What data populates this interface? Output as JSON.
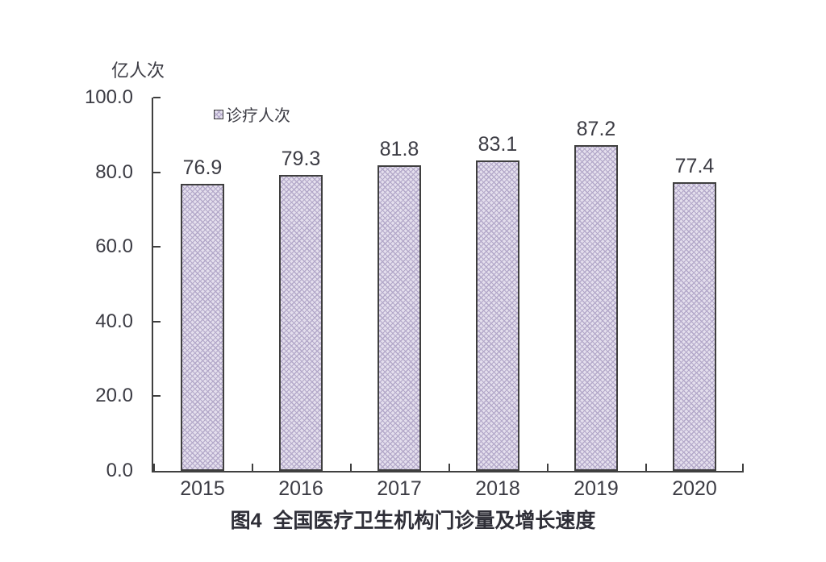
{
  "chart_data": {
    "type": "bar",
    "title": "图4  全国医疗卫生机构门诊量及增长速度",
    "ylabel": "亿人次",
    "xlabel": "",
    "categories": [
      "2015",
      "2016",
      "2017",
      "2018",
      "2019",
      "2020"
    ],
    "series": [
      {
        "name": "诊疗人次",
        "values": [
          76.9,
          79.3,
          81.8,
          83.1,
          87.2,
          77.4
        ]
      }
    ],
    "data_labels": [
      "76.9",
      "79.3",
      "81.8",
      "83.1",
      "87.2",
      "77.4"
    ],
    "ylim": [
      0,
      100
    ],
    "yticks": [
      0,
      20,
      40,
      60,
      80,
      100
    ],
    "ytick_labels": [
      "0.0",
      "20.0",
      "40.0",
      "60.0",
      "80.0",
      "100.0"
    ],
    "grid": false,
    "legend_position": "top-inside-left",
    "colors": {
      "background": "#ffffff",
      "bar_fill": "#e4dfed",
      "bar_pattern": "#b3a8c9",
      "bar_border": "#3f3f3f",
      "axis": "#3f3f3f",
      "text": "#3c3c44",
      "title_text": "#2f2f38"
    }
  }
}
